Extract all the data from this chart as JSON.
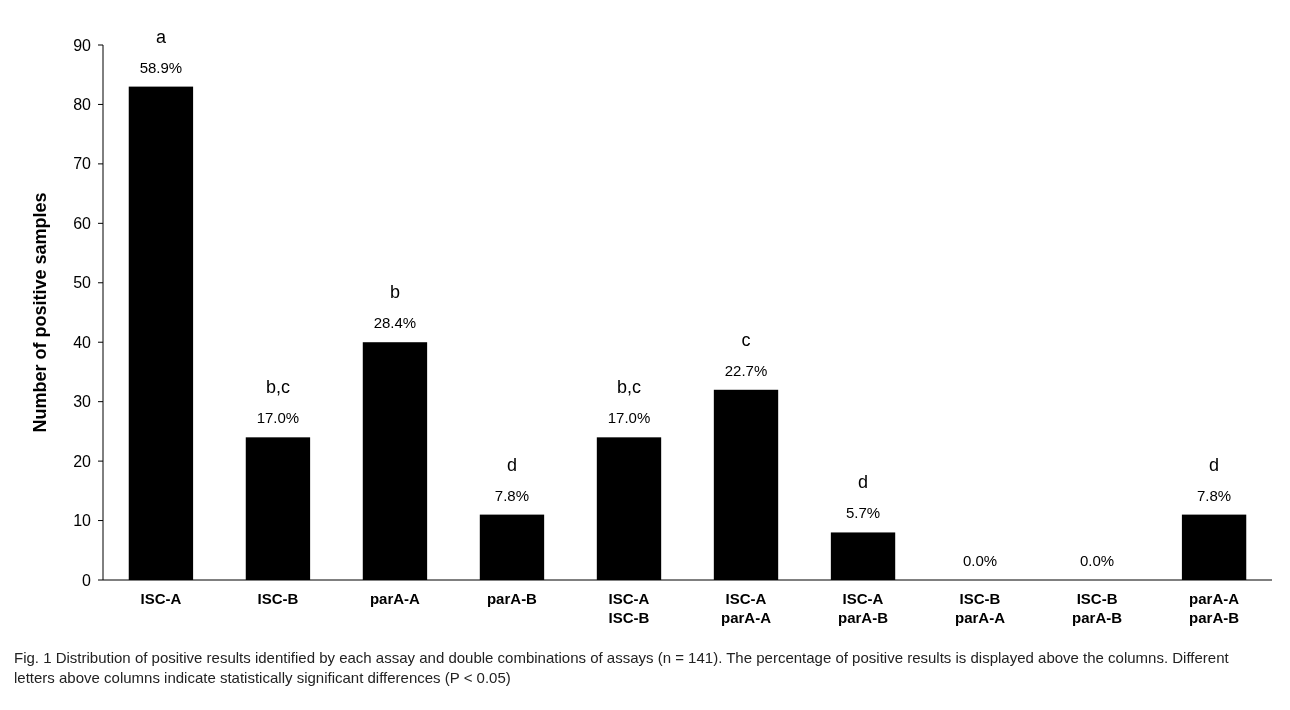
{
  "chart_data": {
    "type": "bar",
    "ylabel": "Number of positive samples",
    "categories": [
      "ISC-A",
      "ISC-B",
      "parA-A",
      "parA-B",
      "ISC-A\nISC-B",
      "ISC-A\nparA-A",
      "ISC-A\nparA-B",
      "ISC-B\nparA-A",
      "ISC-B\nparA-B",
      "parA-A\nparA-B"
    ],
    "values": [
      83,
      24,
      40,
      11,
      24,
      32,
      8,
      0,
      0,
      11
    ],
    "color": "#000000",
    "ylim": [
      0,
      90
    ],
    "yticks": [
      0,
      10,
      20,
      30,
      40,
      50,
      60,
      70,
      80,
      90
    ],
    "grid": false,
    "annotations": [
      {
        "text": "58.9%",
        "x": "ISC-A",
        "y": 83
      },
      {
        "text": "17.0%",
        "x": "ISC-B",
        "y": 24
      },
      {
        "text": "28.4%",
        "x": "parA-A",
        "y": 40
      },
      {
        "text": "7.8%",
        "x": "parA-B",
        "y": 11
      },
      {
        "text": "17.0%",
        "x": "ISC-A\nISC-B",
        "y": 24
      },
      {
        "text": "22.7%",
        "x": "ISC-A\nparA-A",
        "y": 32
      },
      {
        "text": "5.7%",
        "x": "ISC-A\nparA-B",
        "y": 8
      },
      {
        "text": "0.0%",
        "x": "ISC-B\nparA-A",
        "y": 0
      },
      {
        "text": "0.0%",
        "x": "ISC-B\nparA-B",
        "y": 0
      },
      {
        "text": "7.8%",
        "x": "parA-A\nparA-B",
        "y": 11
      },
      {
        "text": "a",
        "x": "ISC-A",
        "y": 83
      },
      {
        "text": "b,c",
        "x": "ISC-B",
        "y": 24
      },
      {
        "text": "b",
        "x": "parA-A",
        "y": 40
      },
      {
        "text": "d",
        "x": "parA-B",
        "y": 11
      },
      {
        "text": "b,c",
        "x": "ISC-A\nISC-B",
        "y": 24
      },
      {
        "text": "c",
        "x": "ISC-A\nparA-A",
        "y": 32
      },
      {
        "text": "d",
        "x": "ISC-A\nparA-B",
        "y": 8
      },
      {
        "text": "d",
        "x": "parA-A\nparA-B",
        "y": 11
      },
      "Fig. 1 Distribution of positive results identified by each assay and double combinations of assays (n = 141). The percentage of positive results is displayed above the columns. Different letters above columns indicate statistically significant differences (P < 0.05)"
    ]
  }
}
